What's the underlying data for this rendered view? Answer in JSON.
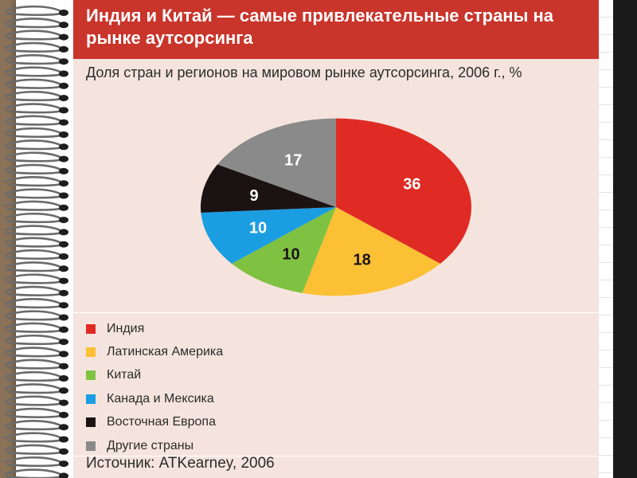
{
  "chart_data": {
    "type": "pie",
    "title": "Индия и Китай — самые привлекательные страны на рынке аутсорсинга",
    "subtitle": "Доля стран и регионов на мировом рынке аутсорсинга, 2006 г., %",
    "slices": [
      {
        "name": "Индия",
        "value": 36,
        "color": "#e02a24"
      },
      {
        "name": "Латинская Америка",
        "value": 18,
        "color": "#fbc034"
      },
      {
        "name": "Китай",
        "value": 10,
        "color": "#7fc241"
      },
      {
        "name": "Канада и Мексика",
        "value": 10,
        "color": "#1b9de2"
      },
      {
        "name": "Восточная Европа",
        "value": 9,
        "color": "#1b1313"
      },
      {
        "name": "Другие страны",
        "value": 17,
        "color": "#8a8a8a"
      }
    ],
    "legend_position": "bottom",
    "source": "Источник: ATKearney, 2006"
  }
}
